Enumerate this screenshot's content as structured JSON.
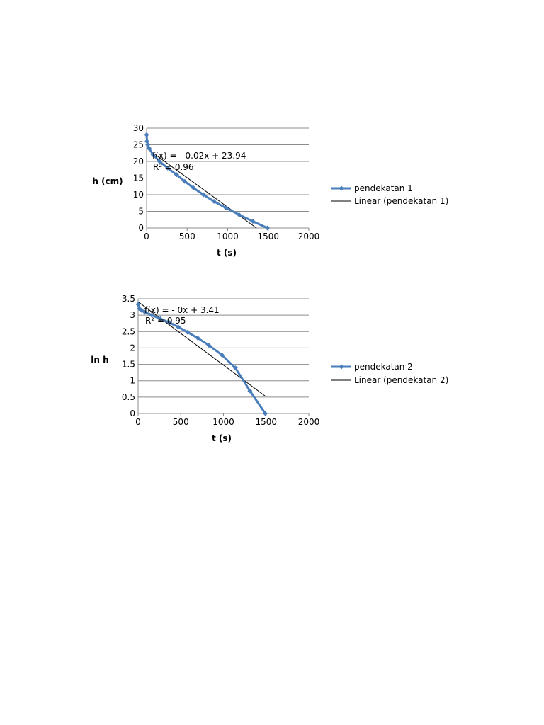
{
  "chart_data": [
    {
      "type": "line",
      "xlabel": "t (s)",
      "ylabel": "h (cm)",
      "xlim": [
        0,
        2000
      ],
      "ylim": [
        0,
        30
      ],
      "xticks": [
        "0",
        "500",
        "1000",
        "1500",
        "2000"
      ],
      "yticks": [
        "0",
        "5",
        "10",
        "15",
        "20",
        "25",
        "30"
      ],
      "grid": "horizontal",
      "legend_position": "right",
      "series": [
        {
          "name": "pendekatan 1",
          "color": "#4a7ebb",
          "x": [
            0,
            5,
            15,
            30,
            80,
            160,
            260,
            370,
            470,
            580,
            700,
            830,
            980,
            1140,
            1310,
            1490
          ],
          "y": [
            28,
            26,
            25,
            24,
            22,
            20,
            18,
            16,
            14,
            12,
            10,
            8,
            6,
            4,
            2,
            0
          ]
        }
      ],
      "trendline": {
        "name": "Linear (pendekatan 1)",
        "color": "#000000",
        "x": [
          0,
          1355
        ],
        "y": [
          23.94,
          -0.03
        ],
        "equation": "f(x) =  - 0.02x + 23.94",
        "r2": "R² = 0.96"
      }
    },
    {
      "type": "line",
      "xlabel": "t (s)",
      "ylabel": "ln h",
      "xlim": [
        0,
        2000
      ],
      "ylim": [
        0,
        3.5
      ],
      "xticks": [
        "0",
        "500",
        "1000",
        "1500",
        "2000"
      ],
      "yticks": [
        "0",
        "0.5",
        "1",
        "1.5",
        "2",
        "2.5",
        "3",
        "3.5"
      ],
      "grid": "horizontal",
      "legend_position": "right",
      "series": [
        {
          "name": "pendekatan 2",
          "color": "#4a7ebb",
          "x": [
            0,
            15,
            40,
            80,
            160,
            260,
            370,
            470,
            580,
            700,
            830,
            980,
            1140,
            1310,
            1490
          ],
          "y": [
            3.33,
            3.2,
            3.15,
            3.09,
            3.0,
            2.89,
            2.77,
            2.64,
            2.48,
            2.3,
            2.08,
            1.79,
            1.39,
            0.69,
            0
          ]
        }
      ],
      "trendline": {
        "name": "Linear (pendekatan 2)",
        "color": "#000000",
        "x": [
          0,
          1490
        ],
        "y": [
          3.41,
          0.53
        ],
        "equation": "f(x) =  - 0x + 3.41",
        "r2": "R² = 0.95"
      }
    }
  ]
}
